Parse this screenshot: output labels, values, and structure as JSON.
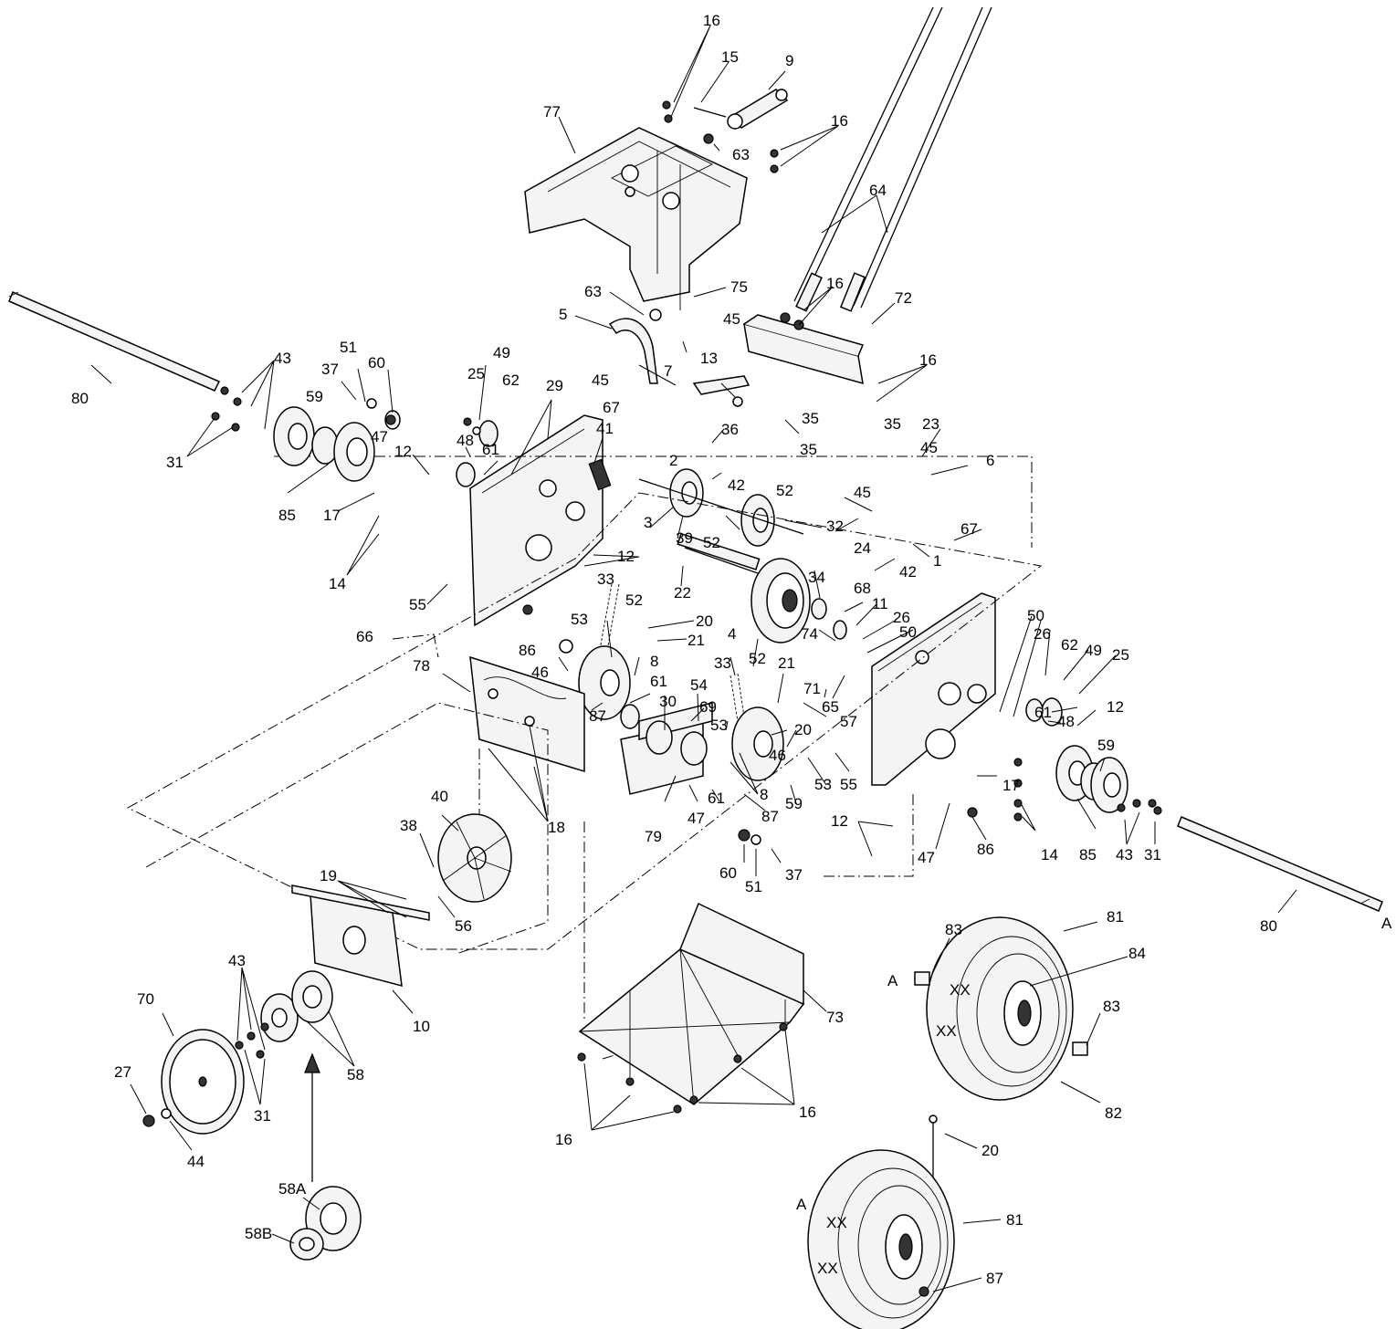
{
  "labels": {
    "l16a": "16",
    "l15": "15",
    "l9": "9",
    "l77": "77",
    "l16b": "16",
    "l63a": "63",
    "l64": "64",
    "l63b": "63",
    "l75": "75",
    "l5": "5",
    "l16c": "16",
    "l72": "72",
    "l13": "13",
    "l80a": "80",
    "l43a": "43",
    "l51a": "51",
    "l60a": "60",
    "l37a": "37",
    "l49a": "49",
    "l25a": "25",
    "l62a": "62",
    "l29": "29",
    "l45a": "45",
    "l7": "7",
    "l16d": "16",
    "l35a": "35",
    "l35b": "35",
    "l23": "23",
    "l45b": "45",
    "l67a": "67",
    "l41": "41",
    "l36": "36",
    "l59a": "59",
    "l31a": "31",
    "l47a": "47",
    "l12a": "12",
    "l48a": "48",
    "l61a": "61",
    "l2": "2",
    "l42a": "42",
    "l52a": "52",
    "l35c": "35",
    "l45c": "45",
    "l6": "6",
    "l45d": "45",
    "l85a": "85",
    "l17a": "17",
    "l3": "3",
    "l32": "32",
    "l67b": "67",
    "l24": "24",
    "l1": "1",
    "l42b": "42",
    "l39": "39",
    "l52b": "52",
    "l12b": "12",
    "l14a": "14",
    "l22": "22",
    "l33a": "33",
    "l55a": "55",
    "l34": "34",
    "l68": "68",
    "l11": "11",
    "l52c": "52",
    "l20a": "20",
    "l26a": "26",
    "l50a": "50",
    "l50b": "50",
    "l53a": "53",
    "l21a": "21",
    "l74": "74",
    "l4": "4",
    "l66": "66",
    "l86a": "86",
    "l26b": "26",
    "l62b": "62",
    "l49b": "49",
    "l25b": "25",
    "l78": "78",
    "l46a": "46",
    "l8a": "8",
    "l33b": "33",
    "l52d": "52",
    "l21b": "21",
    "l71": "71",
    "l65": "65",
    "l61b": "61",
    "l54": "54",
    "l12c": "12",
    "l57": "57",
    "l48b": "48",
    "l30": "30",
    "l69": "69",
    "l87a": "87",
    "l61c": "61",
    "l53b": "53",
    "l20b": "20",
    "l59b": "59",
    "l46b": "46",
    "l17b": "17",
    "l53c": "53",
    "l55b": "55",
    "l8b": "8",
    "l87b": "87",
    "l59c": "59",
    "l40": "40",
    "l61d": "61",
    "l47b": "47",
    "l18": "18",
    "l79": "79",
    "l12d": "12",
    "l47c": "47",
    "l86b": "86",
    "l14b": "14",
    "l85b": "85",
    "l43b": "43",
    "l31b": "31",
    "l38": "38",
    "l60b": "60",
    "l51b": "51",
    "l37b": "37",
    "l80b": "80",
    "lA1": "A",
    "l19": "19",
    "l56": "56",
    "l81a": "81",
    "l83a": "83",
    "lA2": "A",
    "l84": "84",
    "l43c": "43",
    "l70": "70",
    "l83b": "83",
    "l10": "10",
    "l73": "73",
    "l58": "58",
    "l27": "27",
    "l31c": "31",
    "l82": "82",
    "l44": "44",
    "l16e": "16",
    "l16f": "16",
    "l20c": "20",
    "l58A": "58A",
    "l58B": "58B",
    "lA3": "A",
    "l81b": "81",
    "l87c": "87"
  }
}
